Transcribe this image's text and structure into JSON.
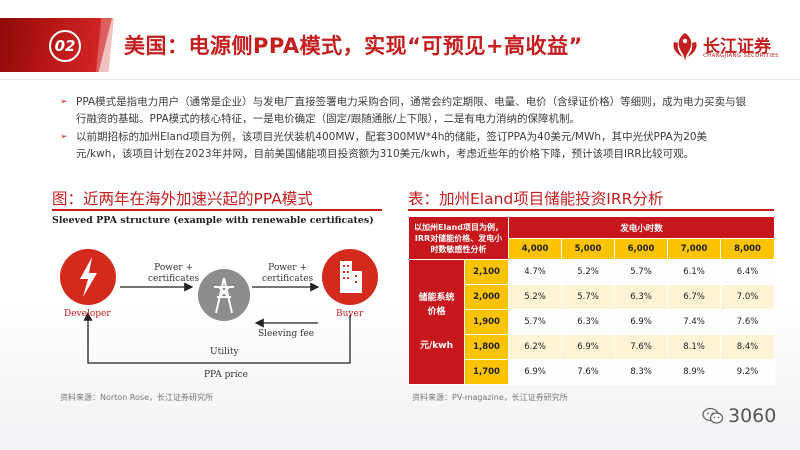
{
  "header": {
    "section_number": "02",
    "title": "美国：电源侧PPA模式，实现“可预见+高收益”",
    "logo_cn": "长江证券",
    "logo_en": "CHANGJIANG SECURITIES"
  },
  "bullets": [
    "PPA模式是指电力用户（通常是企业）与发电厂直接签署电力采购合同，通常会约定期限、电量、电价（含绿证价格）等细则，成为电力买卖与银行融资的基础。PPA模式的核心特征，一是电价确定（固定/跟随通胀/上下限），二是有电力消纳的保障机制。",
    "以前期招标的加州Eland项目为例，该项目光伏装机400MW，配套300MW*4h的储能，签订PPA为40美元/MWh，其中光伏PPA为20美元/kwh，该项目计划在2023年并网，目前美国储能项目投资额为310美元/kwh，考虑近些年的价格下降，预计该项目IRR比较可观。"
  ],
  "figure": {
    "heading": "图：近两年在海外加速兴起的PPA模式",
    "diagram_title": "Sleeved PPA structure (example with renewable certificates)",
    "developer": "Developer",
    "utility": "Utility",
    "buyer": "Buyer",
    "power_certificates_1": "Power +",
    "power_certificates_2": "certificates",
    "sleeving_fee": "Sleeving fee",
    "ppa_price": "PPA price",
    "source": "资料来源：Norton Rose，长江证券研究所"
  },
  "table": {
    "heading": "表：加州Eland项目储能投资IRR分析",
    "corner_label": "以加州Eland项目为例，IRR对储能价格、发电小时数敏感性分析",
    "col_group_label": "发电小时数",
    "columns": [
      "4,000",
      "5,000",
      "6,000",
      "7,000",
      "8,000"
    ],
    "row_label_1": "储能系统",
    "row_label_2": "价格",
    "row_label_3": "元/kwh",
    "rows": [
      {
        "price": "2,100",
        "values": [
          "4.7%",
          "5.2%",
          "5.7%",
          "6.1%",
          "6.4%"
        ]
      },
      {
        "price": "2,000",
        "values": [
          "5.2%",
          "5.7%",
          "6.3%",
          "6.7%",
          "7.0%"
        ]
      },
      {
        "price": "1,900",
        "values": [
          "5.7%",
          "6.3%",
          "6.9%",
          "7.4%",
          "7.6%"
        ]
      },
      {
        "price": "1,800",
        "values": [
          "6.2%",
          "6.9%",
          "7.6%",
          "8.1%",
          "8.4%"
        ]
      },
      {
        "price": "1,700",
        "values": [
          "6.9%",
          "7.6%",
          "8.3%",
          "8.9%",
          "9.2%"
        ]
      }
    ],
    "source": "资料来源：PV-magazine，长江证券研究所"
  },
  "watermark": {
    "text": "3060"
  },
  "colors": {
    "brand_red": "#c41e1e",
    "table_red": "#c8161d",
    "table_yellow": "#fbc300",
    "table_row_tint": "#fff3d6"
  }
}
